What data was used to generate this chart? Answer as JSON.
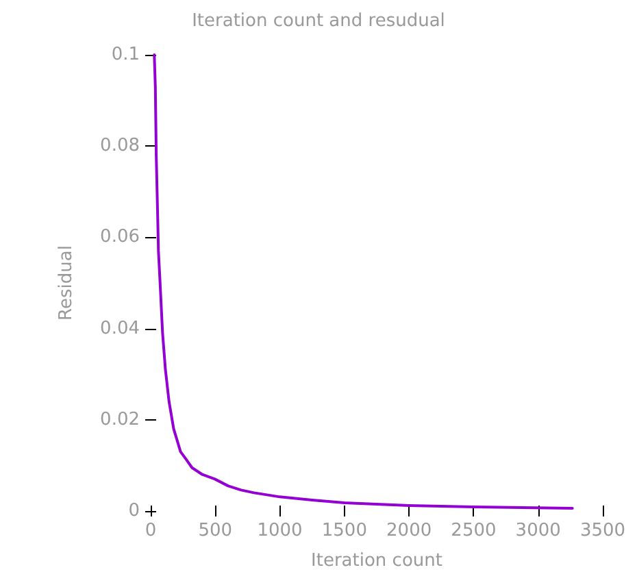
{
  "chart_data": {
    "type": "line",
    "title": "Iteration count and resudual",
    "xlabel": "Iteration count",
    "ylabel": "Residual",
    "x": [
      28,
      36,
      43,
      53,
      60,
      71,
      92,
      114,
      142,
      178,
      231,
      270,
      320,
      400,
      497,
      600,
      700,
      800,
      1000,
      1250,
      1500,
      2000,
      2500,
      3265
    ],
    "series": [
      {
        "color": "#9400d3",
        "values": [
          0.1,
          0.093,
          0.078,
          0.066,
          0.057,
          0.051,
          0.039,
          0.031,
          0.024,
          0.018,
          0.013,
          0.0115,
          0.0095,
          0.008,
          0.007,
          0.0055,
          0.0046,
          0.004,
          0.0031,
          0.0024,
          0.0018,
          0.0012,
          0.0009,
          0.0006
        ]
      }
    ],
    "xlim": [
      0,
      3500
    ],
    "xticks": [
      0,
      500,
      1000,
      1500,
      2000,
      2500,
      3000,
      3500
    ],
    "ylim": [
      0,
      0.1
    ],
    "yticks": [
      0,
      0.02,
      0.04,
      0.06,
      0.08,
      0.1
    ],
    "grid": false,
    "marker": "none",
    "line_style": "solid"
  }
}
